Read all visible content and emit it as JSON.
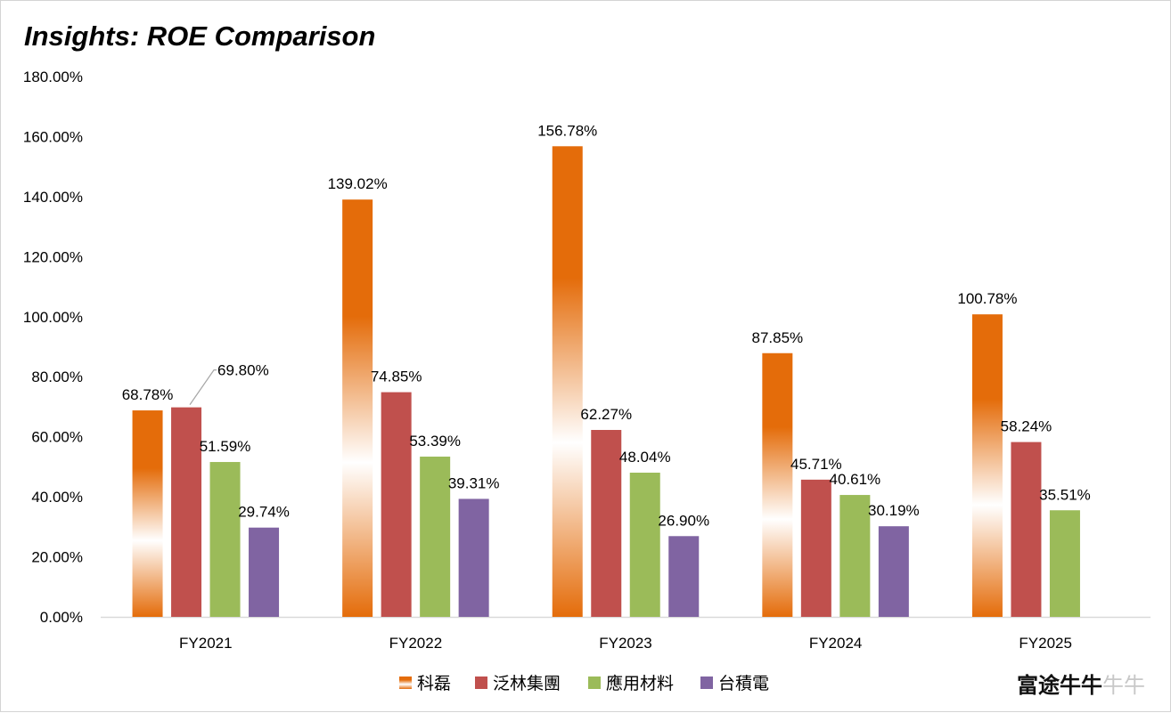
{
  "chart_data": {
    "type": "bar",
    "title": "Insights: ROE Comparison",
    "xlabel": "",
    "ylabel": "",
    "categories": [
      "FY2021",
      "FY2022",
      "FY2023",
      "FY2024",
      "FY2025"
    ],
    "ylim": [
      0,
      180
    ],
    "yticks": [
      0,
      20,
      40,
      60,
      80,
      100,
      120,
      140,
      160,
      180
    ],
    "ytick_labels": [
      "0.00%",
      "20.00%",
      "40.00%",
      "60.00%",
      "80.00%",
      "100.00%",
      "120.00%",
      "140.00%",
      "160.00%",
      "180.00%"
    ],
    "grid": false,
    "legend_position": "bottom",
    "series": [
      {
        "name": "科磊",
        "color": "#e46c0a",
        "gradient": true,
        "values": [
          68.78,
          139.02,
          156.78,
          87.85,
          100.78
        ],
        "labels": [
          "68.78%",
          "139.02%",
          "156.78%",
          "87.85%",
          "100.78%"
        ]
      },
      {
        "name": "泛林集團",
        "color": "#c0504d",
        "gradient": false,
        "values": [
          69.8,
          74.85,
          62.27,
          45.71,
          58.24
        ],
        "labels": [
          "69.80%",
          "74.85%",
          "62.27%",
          "45.71%",
          "58.24%"
        ]
      },
      {
        "name": "應用材料",
        "color": "#9bbb59",
        "gradient": false,
        "values": [
          51.59,
          53.39,
          48.04,
          40.61,
          35.51
        ],
        "labels": [
          "51.59%",
          "53.39%",
          "48.04%",
          "40.61%",
          "35.51%"
        ]
      },
      {
        "name": "台積電",
        "color": "#8064a2",
        "gradient": false,
        "values": [
          29.74,
          39.31,
          26.9,
          30.19,
          null
        ],
        "labels": [
          "29.74%",
          "39.31%",
          "26.90%",
          "30.19%",
          null
        ]
      }
    ]
  },
  "watermark": {
    "text": "富途牛牛",
    "faded_text": "牛牛"
  }
}
